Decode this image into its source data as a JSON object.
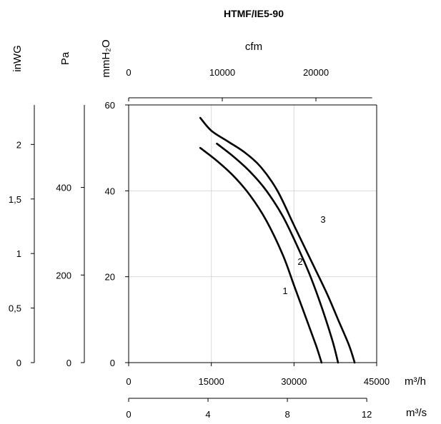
{
  "chart_data": {
    "type": "line",
    "title": "HTMF/IE5-90",
    "xlabel": "m³/h",
    "ylabel": "",
    "xlim": [
      0,
      45000
    ],
    "ylim": [
      0,
      60
    ],
    "grid": true,
    "x_ticks": [
      "0",
      "15000",
      "30000",
      "45000"
    ],
    "y_ticks": [
      "0",
      "20",
      "40",
      "60"
    ],
    "secondary_axes": {
      "top_x": {
        "label": "cfm",
        "ticks": [
          "0",
          "10000",
          "20000"
        ]
      },
      "bottom_x2": {
        "label": "m³/s",
        "ticks": [
          "0",
          "4",
          "8",
          "12"
        ]
      },
      "left_mmH2O": {
        "label": "mmH₂O"
      },
      "left_pa": {
        "label": "Pa",
        "ticks": [
          "0",
          "200",
          "400"
        ]
      },
      "left_inwg": {
        "label": "inWG",
        "ticks": [
          "0",
          "0,5",
          "1",
          "1,5",
          "2"
        ]
      }
    },
    "series": [
      {
        "name": "1",
        "points": [
          [
            13000,
            50
          ],
          [
            16000,
            47
          ],
          [
            19000,
            43.5
          ],
          [
            22000,
            39
          ],
          [
            25000,
            33
          ],
          [
            28000,
            25
          ],
          [
            30000,
            18
          ],
          [
            32000,
            11
          ],
          [
            34000,
            4
          ],
          [
            35000,
            0
          ]
        ]
      },
      {
        "name": "2",
        "points": [
          [
            16000,
            51
          ],
          [
            19000,
            48
          ],
          [
            22000,
            44.5
          ],
          [
            25000,
            40
          ],
          [
            28000,
            34
          ],
          [
            31000,
            26
          ],
          [
            33000,
            20
          ],
          [
            35000,
            13
          ],
          [
            37000,
            5
          ],
          [
            38000,
            0
          ]
        ]
      },
      {
        "name": "3",
        "points": [
          [
            13000,
            57
          ],
          [
            15000,
            54
          ],
          [
            18000,
            51.5
          ],
          [
            21000,
            49
          ],
          [
            24000,
            45.5
          ],
          [
            27000,
            40
          ],
          [
            30000,
            32
          ],
          [
            33000,
            24
          ],
          [
            36000,
            16
          ],
          [
            38000,
            10
          ],
          [
            40000,
            4
          ],
          [
            41000,
            0
          ]
        ]
      }
    ]
  }
}
